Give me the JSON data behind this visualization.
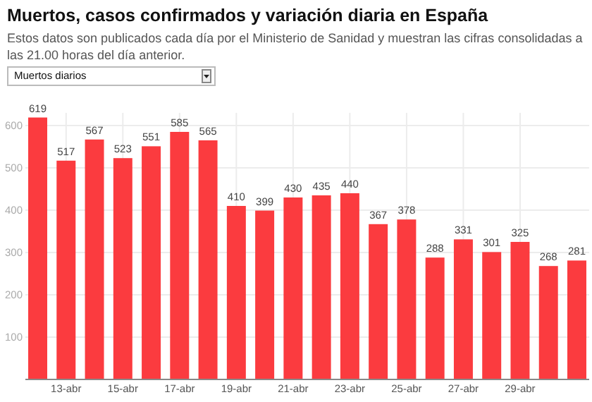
{
  "chart_data": {
    "type": "bar",
    "title": "Muertos, casos confirmados y variación diaria en España",
    "subtitle": "Estos datos son publicados cada día por el Ministerio de Sanidad y muestran las cifras consolidadas a las 21.00 horas del día anterior.",
    "annotations": [
      "Muertos diarios"
    ],
    "categories": [
      null,
      "13-abr",
      null,
      "15-abr",
      null,
      "17-abr",
      null,
      "19-abr",
      null,
      "21-abr",
      null,
      "23-abr",
      null,
      "25-abr",
      null,
      "27-abr",
      null,
      "29-abr",
      null,
      null
    ],
    "values": [
      619,
      517,
      567,
      523,
      551,
      585,
      565,
      410,
      399,
      430,
      435,
      440,
      367,
      378,
      288,
      331,
      301,
      325,
      268,
      281
    ],
    "color": "#fb3b3f",
    "ylim": [
      0,
      630
    ],
    "yticks": [
      {
        "value": 0,
        "label": null
      },
      100,
      200,
      300,
      400,
      500,
      600
    ],
    "grid": true,
    "data_labels": true
  }
}
